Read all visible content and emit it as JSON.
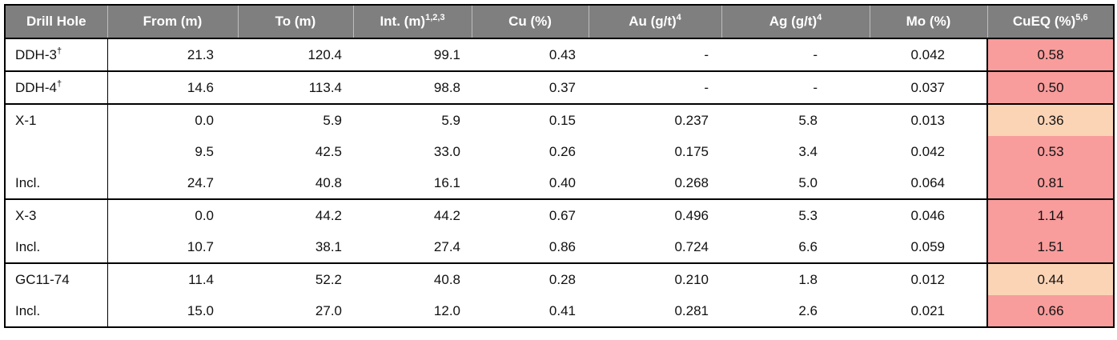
{
  "table": {
    "headers": [
      {
        "text": "Drill Hole"
      },
      {
        "text": "From (m)"
      },
      {
        "text": "To (m)"
      },
      {
        "text": "Int. (m)",
        "sup": "1,2,3"
      },
      {
        "text": "Cu (%)"
      },
      {
        "text": "Au (g/t)",
        "sup": "4"
      },
      {
        "text": "Ag (g/t)",
        "sup": "4"
      },
      {
        "text": "Mo (%)"
      },
      {
        "text": "CuEQ (%)",
        "sup": "5,6"
      }
    ],
    "groups": [
      {
        "rows": [
          {
            "hole": "DDH-3",
            "mark": "†",
            "cells": [
              "21.3",
              "120.4",
              "99.1",
              "0.43",
              "-",
              "-",
              "0.042",
              "0.58"
            ],
            "color": "#f89c9c"
          }
        ]
      },
      {
        "rows": [
          {
            "hole": "DDH-4",
            "mark": "†",
            "cells": [
              "14.6",
              "113.4",
              "98.8",
              "0.37",
              "-",
              "-",
              "0.037",
              "0.50"
            ],
            "color": "#f89c9c"
          }
        ]
      },
      {
        "rows": [
          {
            "hole": "X-1",
            "cells": [
              "0.0",
              "5.9",
              "5.9",
              "0.15",
              "0.237",
              "5.8",
              "0.013",
              "0.36"
            ],
            "color": "#fbd4b6"
          },
          {
            "hole": null,
            "cells": [
              "9.5",
              "42.5",
              "33.0",
              "0.26",
              "0.175",
              "3.4",
              "0.042",
              "0.53"
            ],
            "color": "#f89c9c"
          },
          {
            "hole": "Incl.",
            "cells": [
              "24.7",
              "40.8",
              "16.1",
              "0.40",
              "0.268",
              "5.0",
              "0.064",
              "0.81"
            ],
            "color": "#f89c9c"
          }
        ]
      },
      {
        "rows": [
          {
            "hole": "X-3",
            "cells": [
              "0.0",
              "44.2",
              "44.2",
              "0.67",
              "0.496",
              "5.3",
              "0.046",
              "1.14"
            ],
            "color": "#f89c9c"
          },
          {
            "hole": "Incl.",
            "cells": [
              "10.7",
              "38.1",
              "27.4",
              "0.86",
              "0.724",
              "6.6",
              "0.059",
              "1.51"
            ],
            "color": "#f89c9c"
          }
        ]
      },
      {
        "rows": [
          {
            "hole": "GC11-74",
            "cells": [
              "11.4",
              "52.2",
              "40.8",
              "0.28",
              "0.210",
              "1.8",
              "0.012",
              "0.44"
            ],
            "color": "#fbd4b6"
          },
          {
            "hole": "Incl.",
            "cells": [
              "15.0",
              "27.0",
              "12.0",
              "0.41",
              "0.281",
              "2.6",
              "0.021",
              "0.66"
            ],
            "color": "#f89c9c"
          }
        ]
      }
    ]
  }
}
